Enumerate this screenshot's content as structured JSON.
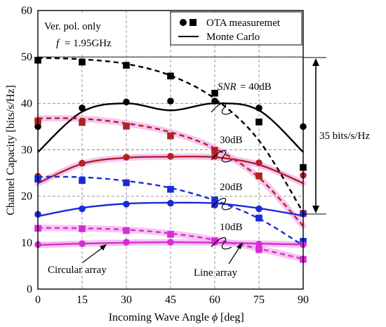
{
  "chart_data": {
    "type": "line",
    "xlabel": "Incoming Wave Angle",
    "xlabel_symbol": "ϕ",
    "xlabel_unit": "[deg]",
    "ylabel": "Channel Capacity [bits/s/Hz]",
    "xlim": [
      0,
      90
    ],
    "ylim": [
      0,
      60
    ],
    "x_ticks": [
      0,
      15,
      30,
      45,
      60,
      75,
      90
    ],
    "y_ticks": [
      0,
      10,
      20,
      30,
      40,
      50,
      60
    ],
    "grid": true,
    "legend_position": "top-right",
    "legend": [
      {
        "label": "OTA measuremet",
        "marker": "circle+square"
      },
      {
        "label": "Monte Carlo",
        "marker": "line"
      }
    ],
    "info_box": {
      "line1": "Ver. pol. only",
      "line2_symbol": "f",
      "line2_value": "= 1.95GHz"
    },
    "snr_labels": [
      {
        "symbol": "SNR",
        "text": "= 40dB"
      },
      {
        "text": "30dB"
      },
      {
        "text": "20dB"
      },
      {
        "text": "10dB"
      }
    ],
    "annotations": {
      "bracket_label": "35 bits/s/Hz",
      "circular_label": "Circular array",
      "line_label": "Line array"
    },
    "colors": {
      "snr40": "#000000",
      "snr30": "#b22222",
      "snr20": "#1a2bd6",
      "snr10": "#d52cd5",
      "highlight": "#f3b2ee"
    },
    "x": [
      0,
      15,
      30,
      45,
      60,
      75,
      90
    ],
    "series": [
      {
        "snr": "40dB",
        "array": "circular",
        "kind": "measurement",
        "marker": "circle",
        "values": [
          35,
          39,
          40.3,
          40.5,
          40.5,
          39,
          35
        ]
      },
      {
        "snr": "40dB",
        "array": "circular",
        "kind": "monte-carlo",
        "style": "solid",
        "values": [
          29.5,
          38.2,
          40,
          38.5,
          40,
          38.5,
          29.5
        ]
      },
      {
        "snr": "40dB",
        "array": "line",
        "kind": "measurement",
        "marker": "square",
        "values": [
          49.3,
          48.9,
          48.2,
          45.9,
          42.2,
          36,
          26.2
        ]
      },
      {
        "snr": "40dB",
        "array": "line",
        "kind": "monte-carlo",
        "style": "dashed",
        "values": [
          49.8,
          49.5,
          48.5,
          46,
          41,
          32,
          16.5
        ]
      },
      {
        "snr": "30dB",
        "array": "circular",
        "kind": "measurement",
        "marker": "circle",
        "values": [
          24.3,
          27.1,
          28.4,
          28.6,
          28.6,
          27.2,
          24.5
        ]
      },
      {
        "snr": "30dB",
        "array": "circular",
        "kind": "monte-carlo",
        "style": "solid",
        "values": [
          22.8,
          27,
          28.3,
          28.5,
          28.4,
          26.8,
          22.8
        ]
      },
      {
        "snr": "30dB",
        "array": "line",
        "kind": "measurement",
        "marker": "square",
        "values": [
          36.2,
          35.9,
          35.1,
          33,
          29.9,
          24.4,
          16.3
        ]
      },
      {
        "snr": "30dB",
        "array": "line",
        "kind": "monte-carlo",
        "style": "dashed",
        "values": [
          36.8,
          36.7,
          35.7,
          33.8,
          30.3,
          24,
          13.6
        ]
      },
      {
        "snr": "20dB",
        "array": "circular",
        "kind": "measurement",
        "marker": "circle",
        "values": [
          16.1,
          17.3,
          18.3,
          18.5,
          18.1,
          17.3,
          16.2
        ]
      },
      {
        "snr": "20dB",
        "array": "circular",
        "kind": "monte-carlo",
        "style": "solid",
        "values": [
          15.7,
          17.5,
          18.4,
          18.6,
          18.5,
          17.4,
          15.8
        ]
      },
      {
        "snr": "20dB",
        "array": "line",
        "kind": "measurement",
        "marker": "square",
        "values": [
          23.7,
          23.4,
          22.9,
          21.5,
          19.2,
          15.3,
          10.3
        ]
      },
      {
        "snr": "20dB",
        "array": "line",
        "kind": "monte-carlo",
        "style": "dashed",
        "values": [
          24.2,
          24.1,
          23.3,
          21.8,
          19.1,
          15.2,
          9.4
        ]
      },
      {
        "snr": "10dB",
        "array": "circular",
        "kind": "measurement",
        "marker": "circle",
        "values": [
          9.6,
          9.8,
          10.1,
          10.1,
          10.1,
          9.7,
          9.6
        ]
      },
      {
        "snr": "10dB",
        "array": "circular",
        "kind": "monte-carlo",
        "style": "solid",
        "values": [
          9.5,
          9.8,
          10,
          10.1,
          10,
          9.8,
          9.6
        ]
      },
      {
        "snr": "10dB",
        "array": "line",
        "kind": "measurement",
        "marker": "square",
        "values": [
          13.1,
          13,
          12.6,
          11.8,
          10.4,
          8.5,
          6.4
        ]
      },
      {
        "snr": "10dB",
        "array": "line",
        "kind": "monte-carlo",
        "style": "dashed",
        "values": [
          13.2,
          13.1,
          12.8,
          12,
          10.6,
          8.7,
          6.5
        ]
      }
    ]
  }
}
